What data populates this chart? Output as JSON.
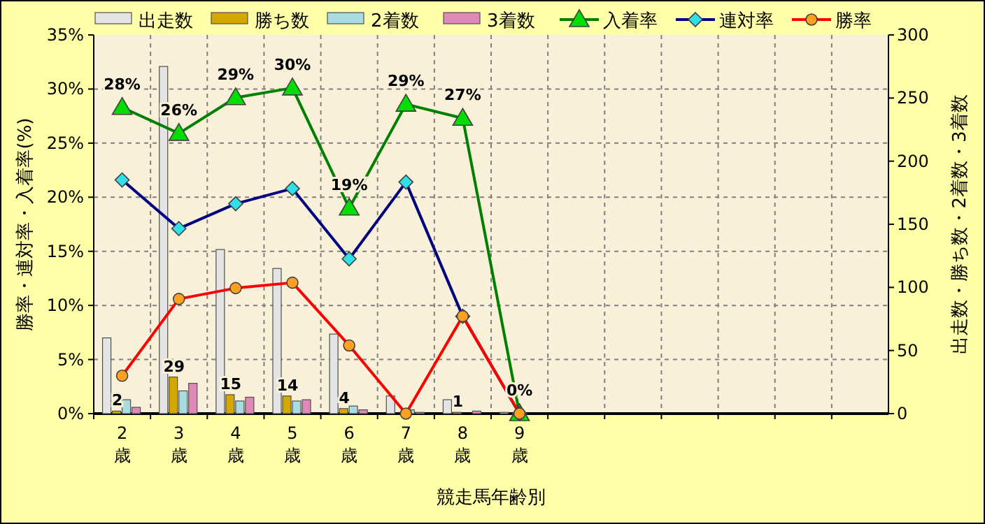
{
  "chart_data": {
    "type": "bar",
    "xlabel": "競走馬年齢別",
    "ylabel": "勝率・連対率・入着率(%)",
    "y2label": "出走数・勝ち数・2着数・3着数",
    "categories": [
      "2歳",
      "3歳",
      "4歳",
      "5歳",
      "6歳",
      "7歳",
      "8歳",
      "9歳",
      null,
      null,
      null,
      null,
      null,
      null
    ],
    "ylim": [
      0,
      35
    ],
    "yticks": [
      {
        "value": 0,
        "label": "0%"
      },
      {
        "value": 5,
        "label": "5%"
      },
      {
        "value": 10,
        "label": "10%"
      },
      {
        "value": 15,
        "label": "15%"
      },
      {
        "value": 20,
        "label": "20%"
      },
      {
        "value": 25,
        "label": "25%"
      },
      {
        "value": 30,
        "label": "30%"
      },
      {
        "value": 35,
        "label": "35%"
      }
    ],
    "y2lim": [
      0,
      300
    ],
    "y2ticks": [
      0,
      50,
      100,
      150,
      200,
      250,
      300
    ],
    "grid": true,
    "legend": "top",
    "series": [
      {
        "name": "出走数",
        "axis": "y2",
        "color": "#e4e4e4",
        "values": [
          60,
          275,
          130,
          115,
          63,
          14,
          11,
          1,
          null,
          null,
          null,
          null,
          null,
          null
        ]
      },
      {
        "name": "勝ち数",
        "axis": "y2",
        "color": "#d4a800",
        "values": [
          2,
          29,
          15,
          14,
          4,
          0,
          1,
          0,
          null,
          null,
          null,
          null,
          null,
          null
        ],
        "value_labels": [
          "2",
          "29",
          "15",
          "14",
          "4",
          null,
          "1",
          null,
          null,
          null,
          null,
          null,
          null,
          null
        ]
      },
      {
        "name": "2着数",
        "axis": "y2",
        "color": "#a8dce0",
        "values": [
          11,
          18,
          10,
          10,
          6,
          3,
          0,
          0,
          null,
          null,
          null,
          null,
          null,
          null
        ]
      },
      {
        "name": "3着数",
        "axis": "y2",
        "color": "#e088b8",
        "values": [
          5,
          24,
          13,
          11,
          3,
          1,
          2,
          0,
          null,
          null,
          null,
          null,
          null,
          null
        ]
      },
      {
        "name": "入着率",
        "type": "line",
        "color": "#008000",
        "marker": "triangle",
        "values": [
          28.3,
          25.9,
          29.2,
          30.1,
          19.0,
          28.6,
          27.3,
          0,
          null,
          null,
          null,
          null,
          null,
          null
        ],
        "value_labels": [
          "28%",
          "26%",
          "29%",
          "30%",
          "19%",
          "29%",
          "27%",
          "0%",
          null,
          null,
          null,
          null,
          null,
          null
        ]
      },
      {
        "name": "連対率",
        "type": "line",
        "color": "#000080",
        "marker": "diamond",
        "values": [
          21.6,
          17.1,
          19.4,
          20.8,
          14.3,
          21.4,
          9.0,
          0,
          null,
          null,
          null,
          null,
          null,
          null
        ]
      },
      {
        "name": "勝率",
        "type": "line",
        "color": "#ff0000",
        "marker": "circle",
        "values": [
          3.5,
          10.6,
          11.6,
          12.1,
          6.3,
          0,
          9.0,
          0,
          null,
          null,
          null,
          null,
          null,
          null
        ]
      }
    ]
  }
}
